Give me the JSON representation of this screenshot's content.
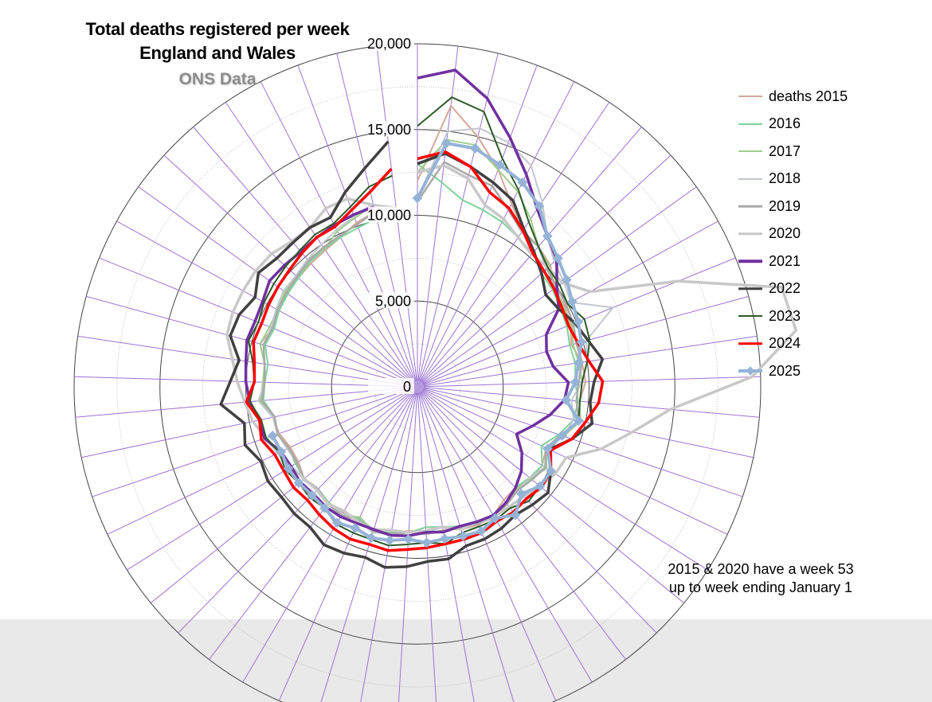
{
  "title_line1": "Total deaths registered per week",
  "title_line2": "England and Wales",
  "subtitle": "ONS Data",
  "note_line1": "2015 & 2020 have a week 53",
  "note_line2": "up to week ending January 1",
  "chart_data": {
    "type": "radar",
    "title": "Total deaths registered per week England and Wales",
    "subtitle": "ONS Data",
    "categories_note": "Weeks 1-53 arranged clockwise from top",
    "r_ticks": [
      0,
      5000,
      10000,
      15000,
      20000
    ],
    "r_tick_labels": [
      "0",
      "5,000",
      "10,000",
      "15,000",
      "20,000"
    ],
    "rlim": [
      0,
      20000
    ],
    "legend_position": "right",
    "series": [
      {
        "name": "deaths 2015",
        "color": "#d4a898",
        "width": 2,
        "marker": false,
        "values": [
          12000,
          16500,
          15000,
          13500,
          12000,
          11000,
          10800,
          10500,
          9800,
          9800,
          9600,
          9300,
          9700,
          9800,
          9500,
          9600,
          9000,
          8300,
          8600,
          8500,
          8200,
          8300,
          8700,
          8800,
          8700,
          8300,
          8500,
          8400,
          8700,
          8700,
          8400,
          8500,
          8500,
          8300,
          8500,
          8200,
          8200,
          8500,
          8600,
          9100,
          9000,
          9000,
          9500,
          9100,
          9200,
          9300,
          9400,
          9500,
          9600,
          9800,
          10200,
          10500,
          10400
        ]
      },
      {
        "name": "2016",
        "color": "#7fd39b",
        "width": 2,
        "marker": false,
        "values": [
          13000,
          12000,
          11200,
          11000,
          10800,
          10500,
          10300,
          9800,
          9700,
          9500,
          9400,
          9200,
          9300,
          9200,
          9400,
          9300,
          8700,
          8000,
          8600,
          8400,
          8200,
          8500,
          8700,
          8600,
          8500,
          8300,
          8200,
          8500,
          8600,
          8700,
          8400,
          8600,
          8500,
          8300,
          8500,
          8400,
          8300,
          8600,
          8500,
          9000,
          8900,
          8800,
          9200,
          9000,
          9200,
          9300,
          9400,
          9600,
          9700,
          9800,
          9900,
          10100,
          null
        ]
      },
      {
        "name": "2017",
        "color": "#9ecf8c",
        "width": 2,
        "marker": false,
        "values": [
          12500,
          14500,
          14500,
          13500,
          12800,
          11800,
          10800,
          10400,
          9900,
          9700,
          9700,
          9400,
          9500,
          9600,
          9500,
          9700,
          9000,
          8300,
          8900,
          8500,
          8300,
          8600,
          8800,
          8600,
          8600,
          8300,
          8500,
          8500,
          8800,
          8800,
          8300,
          8700,
          8600,
          8300,
          8600,
          8300,
          8300,
          8600,
          8600,
          9200,
          9000,
          9000,
          9500,
          9300,
          9300,
          9500,
          9600,
          9800,
          9700,
          10200,
          10500,
          10900,
          null
        ]
      },
      {
        "name": "2018",
        "color": "#c3c7cf",
        "width": 2,
        "marker": false,
        "values": [
          11000,
          15000,
          15500,
          15200,
          14500,
          13000,
          11600,
          10800,
          10500,
          10200,
          12300,
          10200,
          10000,
          9600,
          9000,
          9300,
          9000,
          8300,
          8800,
          8400,
          8400,
          8600,
          8900,
          8700,
          8600,
          8300,
          8500,
          8500,
          8700,
          8900,
          8500,
          8600,
          8600,
          8300,
          8600,
          8300,
          8400,
          8600,
          8600,
          9300,
          8900,
          9000,
          9300,
          9200,
          9400,
          9600,
          9600,
          9800,
          10000,
          10300,
          10600,
          11000,
          null
        ]
      },
      {
        "name": "2019",
        "color": "#a9a9a9",
        "width": 2.5,
        "marker": false,
        "values": [
          10800,
          13200,
          12700,
          12500,
          11600,
          10900,
          10800,
          10200,
          10000,
          9900,
          9800,
          9600,
          9700,
          9400,
          9300,
          9600,
          8800,
          8300,
          8800,
          8600,
          8400,
          8600,
          8800,
          8700,
          8600,
          8500,
          8600,
          8500,
          8700,
          8800,
          8500,
          8700,
          8600,
          8300,
          8500,
          8300,
          8300,
          8600,
          8500,
          9100,
          8900,
          9000,
          9300,
          9100,
          9300,
          9400,
          9500,
          9700,
          9800,
          9900,
          10100,
          10500,
          null
        ]
      },
      {
        "name": "2020",
        "color": "#c8c8c8",
        "width": 3.5,
        "marker": false,
        "values": [
          12500,
          13000,
          12500,
          11300,
          11000,
          10500,
          10200,
          10300,
          10400,
          11500,
          16400,
          22000,
          22300,
          19500,
          14800,
          12800,
          11300,
          9600,
          9500,
          9200,
          8900,
          8800,
          8800,
          8600,
          8700,
          8300,
          8400,
          8500,
          8500,
          8700,
          8600,
          8400,
          8600,
          8400,
          8500,
          8700,
          9000,
          9300,
          9800,
          10100,
          10500,
          10900,
          11500,
          11600,
          11600,
          11600,
          11500,
          11200,
          11200,
          11700,
          11700,
          10900,
          10500
        ]
      },
      {
        "name": "2021",
        "color": "#7030a0",
        "width": 3.5,
        "marker": false,
        "values": [
          18000,
          18600,
          17300,
          15500,
          13900,
          12500,
          11600,
          11000,
          10000,
          9400,
          8100,
          7800,
          8000,
          8800,
          8600,
          7900,
          7100,
          6400,
          7200,
          7800,
          8200,
          8500,
          8700,
          8600,
          8500,
          8600,
          8500,
          8700,
          8800,
          8700,
          8700,
          8800,
          8800,
          8700,
          8800,
          8700,
          8800,
          9400,
          9400,
          9800,
          10000,
          10100,
          10300,
          10200,
          10300,
          10600,
          10500,
          10400,
          10500,
          10600,
          10700,
          10800,
          null
        ]
      },
      {
        "name": "2022",
        "color": "#404040",
        "width": 3.5,
        "marker": false,
        "values": [
          13000,
          13700,
          13200,
          12700,
          12200,
          11100,
          10400,
          9800,
          9200,
          9400,
          9900,
          10300,
          10900,
          10300,
          10100,
          10400,
          9500,
          8500,
          9200,
          9800,
          9600,
          9400,
          9600,
          9700,
          9700,
          10200,
          10200,
          10500,
          10700,
          10400,
          10600,
          10700,
          10300,
          10300,
          10200,
          10300,
          10100,
          10600,
          10300,
          11500,
          10900,
          10500,
          11300,
          11200,
          10800,
          11400,
          11100,
          11100,
          11200,
          11100,
          12100,
          13100,
          14400
        ]
      },
      {
        "name": "2023",
        "color": "#2d5a27",
        "width": 2,
        "marker": false,
        "values": [
          15200,
          17000,
          16500,
          14200,
          12900,
          11600,
          10800,
          10300,
          10200,
          10000,
          10500,
          10400,
          10000,
          9600,
          9500,
          9600,
          8900,
          8500,
          9100,
          9200,
          9300,
          8900,
          9000,
          8900,
          8900,
          9300,
          9100,
          9200,
          9400,
          9300,
          9300,
          9300,
          8900,
          9000,
          8900,
          9100,
          8900,
          9300,
          9300,
          9800,
          9500,
          9700,
          10200,
          10000,
          10200,
          10300,
          10400,
          10500,
          10700,
          10700,
          11200,
          12000,
          12400
        ]
      },
      {
        "name": "2024",
        "color": "#ff0000",
        "width": 3.5,
        "marker": false,
        "values": [
          13300,
          13800,
          13200,
          12100,
          11700,
          11000,
          10300,
          10000,
          9800,
          9600,
          9500,
          9700,
          10100,
          10800,
          10600,
          10000,
          9500,
          8600,
          9200,
          9300,
          9100,
          9200,
          9100,
          9300,
          9300,
          9300,
          9400,
          9500,
          9700,
          9600,
          9700,
          9600,
          9400,
          9200,
          9300,
          9200,
          9200,
          9600,
          9400,
          10000,
          9500,
          9600,
          9900,
          9800,
          9900,
          10000,
          10100,
          10300,
          10500,
          10500,
          11000,
          11700,
          12800
        ]
      },
      {
        "name": "2025",
        "color": "#95b3d7",
        "width": 4,
        "marker": true,
        "values": [
          11000,
          14300,
          14300,
          13800,
          13400,
          12700,
          11600,
          11100,
          10700,
          10300,
          10100,
          9900,
          9500,
          9200,
          8700,
          9600,
          8900,
          8400,
          9200,
          9200,
          8700,
          9400,
          8900,
          9200,
          9100,
          9000,
          9100,
          8900,
          9100,
          9200,
          9000,
          9200,
          8900,
          8800,
          8900,
          8900,
          8800,
          8900,
          null,
          null,
          null,
          null,
          null,
          null,
          null,
          null,
          null,
          null,
          null,
          null,
          null,
          null,
          null
        ]
      }
    ]
  }
}
